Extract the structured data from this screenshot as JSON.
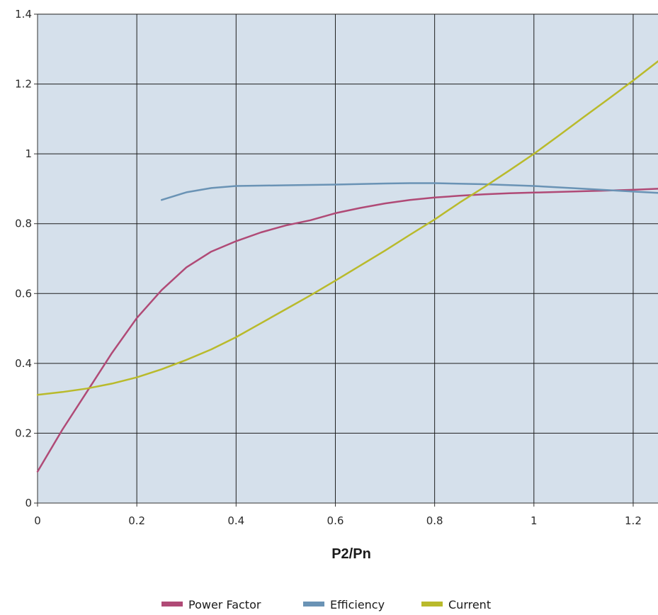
{
  "chart_data": {
    "type": "line",
    "title": "",
    "xlabel": "P2/Pn",
    "ylabel": "",
    "xlim": [
      0,
      1.25
    ],
    "ylim": [
      0,
      1.4
    ],
    "x_ticks": [
      0,
      0.2,
      0.4,
      0.6,
      0.8,
      1,
      1.2
    ],
    "x_tick_labels": [
      "0",
      "0.2",
      "0.4",
      "0.6",
      "0.8",
      "1",
      "1.2"
    ],
    "y_ticks": [
      0,
      0.2,
      0.4,
      0.6,
      0.8,
      1,
      1.2,
      1.4
    ],
    "y_tick_labels": [
      "0",
      "0.2",
      "0.4",
      "0.6",
      "0.8",
      "1",
      "1.2",
      "1.4"
    ],
    "grid": true,
    "legend_position": "bottom-center",
    "plot_background": "#d5e0eb",
    "series": [
      {
        "name": "Power Factor",
        "color": "#b04a76",
        "x": [
          0,
          0.05,
          0.1,
          0.15,
          0.2,
          0.25,
          0.3,
          0.35,
          0.4,
          0.45,
          0.5,
          0.55,
          0.6,
          0.65,
          0.7,
          0.75,
          0.8,
          0.85,
          0.9,
          0.95,
          1.0,
          1.05,
          1.1,
          1.15,
          1.2,
          1.25
        ],
        "values": [
          0.09,
          0.21,
          0.32,
          0.43,
          0.53,
          0.61,
          0.675,
          0.72,
          0.75,
          0.775,
          0.795,
          0.81,
          0.83,
          0.845,
          0.858,
          0.868,
          0.875,
          0.88,
          0.884,
          0.887,
          0.889,
          0.891,
          0.893,
          0.895,
          0.897,
          0.9
        ]
      },
      {
        "name": "Efficiency",
        "color": "#6a93b5",
        "x": [
          0.25,
          0.3,
          0.35,
          0.4,
          0.5,
          0.6,
          0.7,
          0.75,
          0.8,
          0.9,
          1.0,
          1.1,
          1.2,
          1.25
        ],
        "values": [
          0.868,
          0.89,
          0.902,
          0.908,
          0.91,
          0.912,
          0.915,
          0.916,
          0.916,
          0.913,
          0.908,
          0.9,
          0.892,
          0.888
        ]
      },
      {
        "name": "Current",
        "color": "#b9ba2b",
        "x": [
          0,
          0.05,
          0.1,
          0.15,
          0.2,
          0.25,
          0.3,
          0.35,
          0.4,
          0.45,
          0.5,
          0.55,
          0.6,
          0.65,
          0.7,
          0.75,
          0.8,
          0.85,
          0.9,
          0.95,
          1.0,
          1.05,
          1.1,
          1.15,
          1.2,
          1.25
        ],
        "values": [
          0.31,
          0.318,
          0.328,
          0.342,
          0.36,
          0.383,
          0.41,
          0.44,
          0.475,
          0.515,
          0.555,
          0.595,
          0.637,
          0.68,
          0.723,
          0.768,
          0.812,
          0.86,
          0.905,
          0.952,
          1.0,
          1.052,
          1.105,
          1.157,
          1.21,
          1.265
        ]
      }
    ]
  }
}
